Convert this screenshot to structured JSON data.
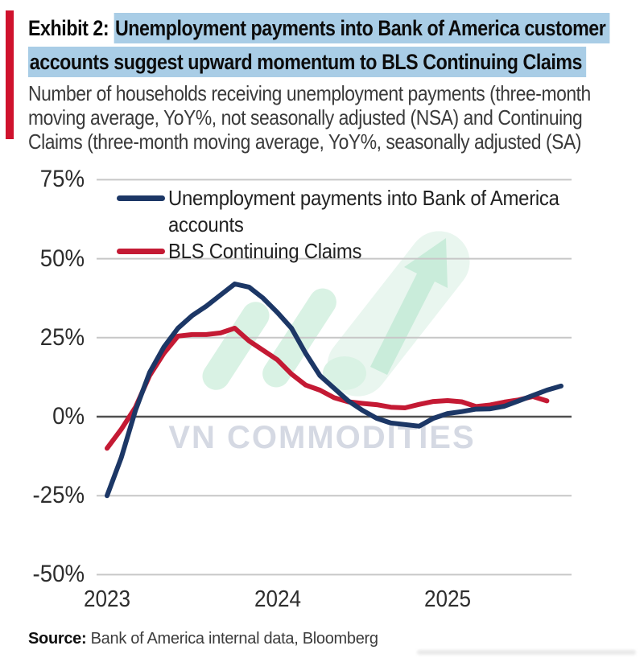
{
  "header": {
    "exhibit_prefix": "Exhibit 2: ",
    "title_highlight_line1": "Unemployment payments into Bank of America customer",
    "title_highlight_line2": "accounts suggest upward momentum to BLS Continuing Claims",
    "subtitle_lines": [
      "Number of households receiving unemployment payments (three-month",
      "moving average, YoY%, not seasonally adjusted (NSA) and Continuing",
      "Claims (three-month moving average, YoY%, seasonally adjusted (SA)"
    ],
    "highlight_color": "#a9cde6",
    "accent_bar_color": "#cf122d"
  },
  "legend": {
    "items": [
      {
        "lines": [
          "Unemployment payments into Bank of America",
          "accounts"
        ],
        "color": "#1c3766"
      },
      {
        "lines": [
          "BLS Continuing Claims",
          ""
        ],
        "color": "#c41a34"
      }
    ]
  },
  "watermark": {
    "text": "VN COMMODITIES",
    "text_color": "#d5d9e3",
    "logo": "mint-green up-right arrow with slanted bars and dot",
    "logo_color": "#d9f2e4"
  },
  "source": {
    "label": "Source:",
    "text": " Bank of America internal data, Bloomberg"
  },
  "chart_data": {
    "type": "line",
    "title": "Unemployment payments into Bank of America customer accounts vs BLS Continuing Claims",
    "xlabel": "",
    "ylabel": "YoY %",
    "ylim": [
      -50,
      75
    ],
    "grid": "horizontal",
    "legend_position": "top-left-inside",
    "y_ticks": [
      75,
      50,
      25,
      0,
      -25,
      -50
    ],
    "y_tick_labels": [
      "75%",
      "50%",
      "25%",
      "0%",
      "-25%",
      "-50%"
    ],
    "x_tick_labels": [
      "2023",
      "2024",
      "2025"
    ],
    "x_tick_month_index": [
      0,
      12,
      24
    ],
    "x_interval": "monthly",
    "x_start": "2023-01",
    "months": [
      "2023-01",
      "2023-02",
      "2023-03",
      "2023-04",
      "2023-05",
      "2023-06",
      "2023-07",
      "2023-08",
      "2023-09",
      "2023-10",
      "2023-11",
      "2023-12",
      "2024-01",
      "2024-02",
      "2024-03",
      "2024-04",
      "2024-05",
      "2024-06",
      "2024-07",
      "2024-08",
      "2024-09",
      "2024-10",
      "2024-11",
      "2024-12",
      "2025-01",
      "2025-02",
      "2025-03",
      "2025-04",
      "2025-05",
      "2025-06",
      "2025-07",
      "2025-08",
      "2025-09"
    ],
    "series": [
      {
        "name": "Unemployment payments into Bank of America accounts",
        "short": "bac-unemployment-payments",
        "color": "#1c3766",
        "values": [
          -25,
          -13,
          2,
          14,
          22,
          28,
          32,
          35,
          38.5,
          42,
          41,
          37.5,
          33,
          28,
          20,
          13,
          9,
          5,
          2,
          -0.5,
          -2,
          -2.5,
          -3,
          -0.5,
          1,
          1.6,
          2.4,
          2.5,
          3.3,
          5,
          6.7,
          8.4,
          9.7
        ]
      },
      {
        "name": "BLS Continuing Claims",
        "short": "bls-continuing-claims",
        "color": "#c41a34",
        "values": [
          -10,
          -4,
          3,
          13,
          20,
          25.5,
          26,
          26,
          26.5,
          28,
          24,
          21,
          18,
          13.5,
          10,
          8.4,
          6,
          4.7,
          4.2,
          3.8,
          3,
          2.8,
          3.9,
          4.8,
          5.1,
          4.7,
          3.2,
          3.7,
          4.6,
          5.3,
          6.4,
          5
        ]
      }
    ]
  }
}
